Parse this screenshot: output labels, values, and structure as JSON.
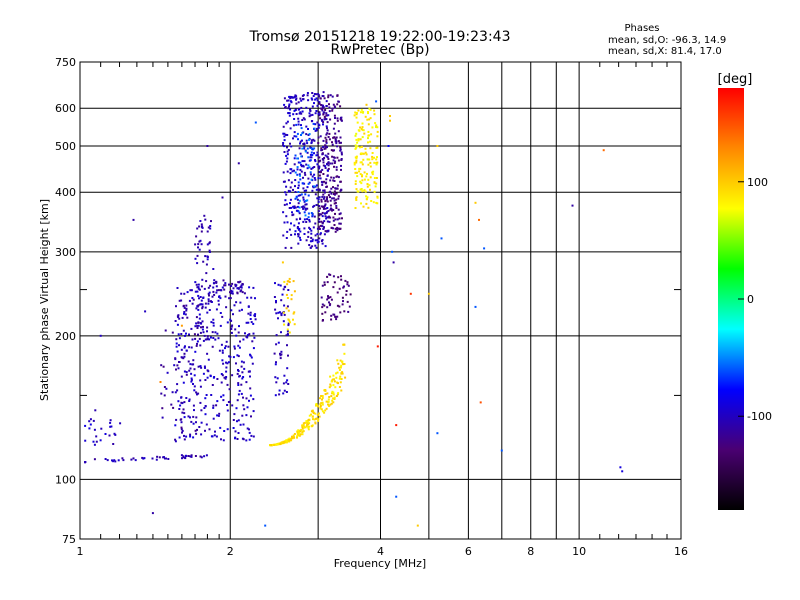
{
  "chart_data": {
    "type": "scatter",
    "title": "Tromsø 20151218 19:22:00-19:23:43",
    "subtitle": "RwPretec (Bp)",
    "phases": {
      "title": "Phases",
      "line1": "mean, sd,O: -96.3, 14.9",
      "line2": "mean, sd,X:  81.4, 17.0"
    },
    "xlabel": "Frequency [MHz]",
    "ylabel": "Stationary phase Virtual Height [km]",
    "x_scale": "log",
    "y_scale": "log",
    "xlim": [
      1,
      16
    ],
    "ylim": [
      75,
      750
    ],
    "x_ticks": [
      1,
      2,
      4,
      6,
      8,
      10,
      16
    ],
    "x_tick_labels": [
      "1",
      "2",
      "4",
      "6",
      "8",
      "10",
      "16"
    ],
    "x_minor_grid": [
      3,
      5,
      7,
      9
    ],
    "y_ticks": [
      75,
      100,
      200,
      300,
      400,
      500,
      600,
      750
    ],
    "y_tick_labels": [
      "75",
      "100",
      "200",
      "300",
      "400",
      "500",
      "600",
      "750"
    ],
    "y_minor_ticks": [
      150,
      250
    ],
    "grid": true,
    "colorbar": {
      "label": "[deg]",
      "range": [
        -180,
        180
      ],
      "ticks": [
        100,
        0,
        -100
      ],
      "tick_labels": [
        "100",
        "0",
        "-100"
      ],
      "stops": [
        "#000000",
        "#4a0072",
        "#0000ff",
        "#00ffff",
        "#00ff00",
        "#ffff00",
        "#ff8800",
        "#ff0000"
      ]
    },
    "clusters": [
      {
        "name": "o_trace_low",
        "phase": -105,
        "n": 45,
        "fmin": 1.02,
        "fmax": 1.8,
        "hmin": 108,
        "hmax": 113
      },
      {
        "name": "o_spread_bottom",
        "phase": -100,
        "n": 25,
        "fmin": 1.0,
        "fmax": 1.22,
        "hmin": 118,
        "hmax": 140
      },
      {
        "name": "o_spread_mid",
        "phase": -100,
        "n": 380,
        "fmin": 1.55,
        "fmax": 2.25,
        "hmin": 120,
        "hmax": 260
      },
      {
        "name": "o_spread_a",
        "phase": -105,
        "n": 80,
        "fmin": 1.7,
        "fmax": 1.85,
        "hmin": 195,
        "hmax": 360
      },
      {
        "name": "o_spread_b",
        "phase": -100,
        "n": 60,
        "fmin": 2.45,
        "fmax": 2.62,
        "hmin": 150,
        "hmax": 260
      },
      {
        "name": "o_trace_diag",
        "phase": -110,
        "n": 55,
        "fmin": 1.45,
        "fmax": 1.75,
        "hmin": 125,
        "hmax": 240
      },
      {
        "name": "o_trace_top",
        "phase": -108,
        "n": 40,
        "fmin": 1.85,
        "fmax": 2.15,
        "hmin": 245,
        "hmax": 262
      },
      {
        "name": "f_cusp_O",
        "phase": -100,
        "n": 420,
        "fmin": 2.55,
        "fmax": 3.15,
        "hmin": 305,
        "hmax": 650
      },
      {
        "name": "f_cusp_O2",
        "phase": -120,
        "n": 260,
        "fmin": 3.0,
        "fmax": 3.35,
        "hmin": 330,
        "hmax": 640
      },
      {
        "name": "f_cusp_cyan",
        "phase": -60,
        "n": 60,
        "fmin": 2.7,
        "fmax": 2.95,
        "hmin": 350,
        "hmax": 560
      },
      {
        "name": "violet_mid",
        "phase": -125,
        "n": 60,
        "fmin": 3.05,
        "fmax": 3.5,
        "hmin": 215,
        "hmax": 270
      },
      {
        "name": "x_low",
        "phase": 90,
        "n": 260,
        "fmin": 2.4,
        "fmax": 3.4,
        "hmin": 118,
        "hmax": 185
      },
      {
        "name": "x_high",
        "phase": 85,
        "n": 160,
        "fmin": 3.55,
        "fmax": 3.95,
        "hmin": 370,
        "hmax": 600
      },
      {
        "name": "x_small",
        "phase": 95,
        "n": 25,
        "fmin": 2.55,
        "fmax": 2.7,
        "hmin": 200,
        "hmax": 265
      }
    ],
    "isolated_points": [
      [
        1.28,
        350,
        -110
      ],
      [
        1.35,
        225,
        -100
      ],
      [
        1.4,
        85,
        -110
      ],
      [
        1.45,
        160,
        130
      ],
      [
        1.1,
        200,
        -100
      ],
      [
        1.6,
        210,
        120
      ],
      [
        1.8,
        500,
        -110
      ],
      [
        1.93,
        390,
        -110
      ],
      [
        2.08,
        460,
        -110
      ],
      [
        2.25,
        560,
        -60
      ],
      [
        2.35,
        80,
        -60
      ],
      [
        2.55,
        285,
        100
      ],
      [
        4.15,
        500,
        -80
      ],
      [
        4.18,
        565,
        100
      ],
      [
        4.22,
        300,
        -60
      ],
      [
        4.25,
        285,
        -110
      ],
      [
        4.3,
        130,
        170
      ],
      [
        4.3,
        92,
        -60
      ],
      [
        3.95,
        190,
        170
      ],
      [
        4.6,
        245,
        160
      ],
      [
        4.75,
        80,
        100
      ],
      [
        5.0,
        245,
        100
      ],
      [
        5.2,
        500,
        100
      ],
      [
        5.3,
        320,
        -60
      ],
      [
        5.2,
        125,
        -60
      ],
      [
        6.2,
        380,
        100
      ],
      [
        6.3,
        350,
        140
      ],
      [
        6.45,
        305,
        -60
      ],
      [
        6.35,
        145,
        150
      ],
      [
        7.0,
        115,
        -60
      ],
      [
        9.7,
        375,
        -110
      ],
      [
        11.2,
        490,
        140
      ],
      [
        12.1,
        106,
        -90
      ],
      [
        12.2,
        104,
        -90
      ],
      [
        3.92,
        620,
        -60
      ],
      [
        3.75,
        610,
        100
      ],
      [
        4.18,
        578,
        100
      ],
      [
        6.2,
        230,
        -60
      ]
    ]
  }
}
